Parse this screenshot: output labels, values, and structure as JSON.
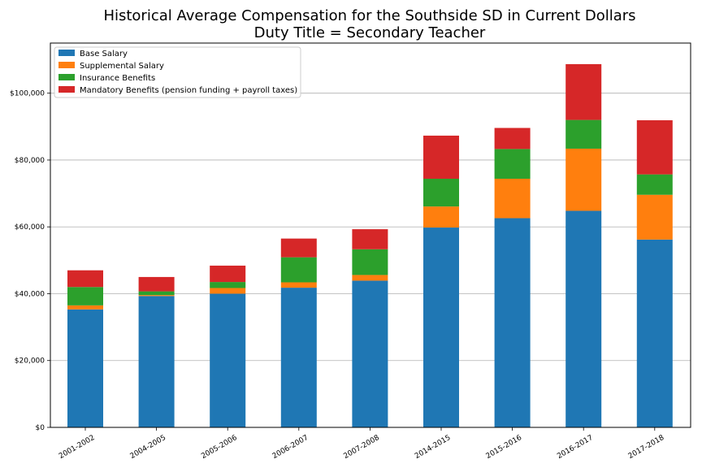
{
  "chart_data": {
    "type": "bar",
    "stacked": true,
    "title_line1": "Historical Average Compensation for the Southside SD in Current Dollars",
    "title_line2": "Duty Title = Secondary Teacher",
    "xlabel": "",
    "ylabel": "",
    "ylim": [
      0,
      115000
    ],
    "yticks": [
      0,
      20000,
      40000,
      60000,
      80000,
      100000
    ],
    "ytick_labels": [
      "$0",
      "$20,000",
      "$40,000",
      "$60,000",
      "$80,000",
      "$100,000"
    ],
    "grid": "horizontal",
    "legend_position": "upper-left",
    "categories": [
      "2001-2002",
      "2004-2005",
      "2005-2006",
      "2006-2007",
      "2007-2008",
      "2014-2015",
      "2015-2016",
      "2016-2017",
      "2017-2018"
    ],
    "series": [
      {
        "name": "Base Salary",
        "color": "#1f77b4",
        "values": [
          35300,
          39300,
          40000,
          41800,
          43900,
          59800,
          62600,
          64800,
          56200
        ]
      },
      {
        "name": "Supplemental Salary",
        "color": "#ff7f0e",
        "values": [
          1200,
          300,
          1700,
          1600,
          1700,
          6300,
          11800,
          18600,
          13400
        ]
      },
      {
        "name": "Insurance Benefits",
        "color": "#2ca02c",
        "values": [
          5500,
          1100,
          1800,
          7500,
          7700,
          8300,
          8900,
          8600,
          6100
        ]
      },
      {
        "name": "Mandatory Benefits (pension funding + payroll taxes)",
        "color": "#d62728",
        "values": [
          5000,
          4300,
          4900,
          5600,
          6000,
          12900,
          6300,
          16700,
          16200
        ]
      }
    ]
  }
}
